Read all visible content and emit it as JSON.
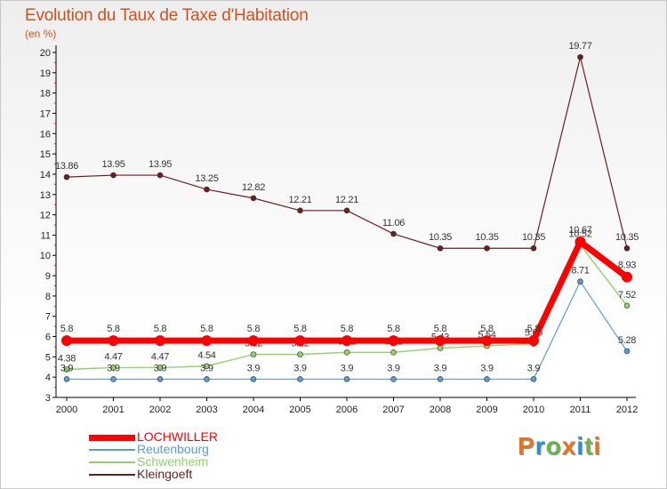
{
  "title": "Evolution du Taux de Taxe d'Habitation",
  "subtitle": "(en %)",
  "brand": "Proxiti",
  "colors": {
    "title": "#d0501e",
    "axis": "#000000",
    "grid_tick": "#ff0000",
    "brand_letters": [
      "#e8731f",
      "#2f8fd6",
      "#6ab54a",
      "#e8731f",
      "#2f8fd6",
      "#6ab54a",
      "#e8731f"
    ]
  },
  "chart_data": {
    "type": "line",
    "x": [
      "2000",
      "2001",
      "2002",
      "2003",
      "2004",
      "2005",
      "2006",
      "2007",
      "2008",
      "2009",
      "2010",
      "2011",
      "2012"
    ],
    "ylim": [
      3,
      20
    ],
    "yticks": [
      "3",
      "4",
      "5",
      "6",
      "7",
      "8",
      "9",
      "10",
      "11",
      "12",
      "13",
      "14",
      "15",
      "16",
      "17",
      "18",
      "19",
      "20"
    ],
    "grid": false,
    "legend_position": "bottom-left",
    "series": [
      {
        "name": "Kleingoeft",
        "color": "#6b1e1e",
        "values": [
          13.86,
          13.95,
          13.95,
          13.25,
          12.82,
          12.21,
          12.21,
          11.06,
          10.35,
          10.35,
          10.35,
          19.77,
          10.35
        ],
        "labels": [
          "13.86",
          "13.95",
          "13.95",
          "13.25",
          "12.82",
          "12.21",
          "12.21",
          "11.06",
          "10.35",
          "10.35",
          "10.35",
          "19.77",
          "10.35"
        ]
      },
      {
        "name": "Schwenheim",
        "color": "#8fd16a",
        "values": [
          4.38,
          4.47,
          4.47,
          4.54,
          5.12,
          5.12,
          5.22,
          5.22,
          5.43,
          5.54,
          5.65,
          10.52,
          7.52
        ],
        "labels": [
          "4.38",
          "4.47",
          "4.47",
          "4.54",
          "5.12",
          "5.12",
          "5.22",
          "5.22",
          "5.43",
          "5.54",
          "5.65",
          "10.52",
          "7.52"
        ]
      },
      {
        "name": "Reutenbourg",
        "color": "#5b9bd5",
        "values": [
          3.9,
          3.9,
          3.9,
          3.9,
          3.9,
          3.9,
          3.9,
          3.9,
          3.9,
          3.9,
          3.9,
          8.71,
          5.28
        ],
        "labels": [
          "3.9",
          "3.9",
          "3.9",
          "3.9",
          "3.9",
          "3.9",
          "3.9",
          "3.9",
          "3.9",
          "3.9",
          "3.9",
          "8.71",
          "5.28"
        ]
      },
      {
        "name": "LOCHWILLER",
        "color": "#ff0000",
        "values": [
          5.8,
          5.8,
          5.8,
          5.8,
          5.8,
          5.8,
          5.8,
          5.8,
          5.8,
          5.8,
          5.8,
          10.67,
          8.93
        ],
        "labels": [
          "5.8",
          "5.8",
          "5.8",
          "5.8",
          "5.8",
          "5.8",
          "5.8",
          "5.8",
          "5.8",
          "5.8",
          "5.8",
          "10.67",
          "8.93"
        ]
      }
    ],
    "legend": [
      {
        "name": "LOCHWILLER",
        "color": "#ff0000",
        "text_color": "#ff0000"
      },
      {
        "name": "Reutenbourg",
        "color": "#5b9bd5",
        "text_color": "#5b9bd5"
      },
      {
        "name": "Schwenheim",
        "color": "#8fd16a",
        "text_color": "#8fd16a"
      },
      {
        "name": "Kleingoeft",
        "color": "#6b1e1e",
        "text_color": "#6b1e1e"
      }
    ]
  }
}
